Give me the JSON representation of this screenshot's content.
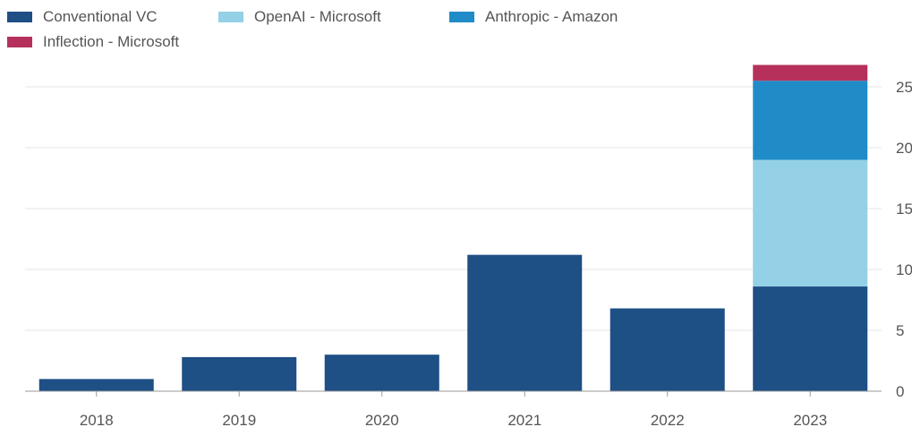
{
  "chart_data": {
    "type": "bar",
    "stacked": true,
    "categories": [
      "2018",
      "2019",
      "2020",
      "2021",
      "2022",
      "2023"
    ],
    "series": [
      {
        "name": "Conventional VC",
        "color": "#1e4f85",
        "values": [
          1.0,
          2.8,
          3.0,
          11.2,
          6.8,
          8.6
        ]
      },
      {
        "name": "OpenAI - Microsoft",
        "color": "#94d1e6",
        "values": [
          0,
          0,
          0,
          0,
          0,
          10.4
        ]
      },
      {
        "name": "Anthropic - Amazon",
        "color": "#1f8cc8",
        "values": [
          0,
          0,
          0,
          0,
          0,
          6.5
        ]
      },
      {
        "name": "Inflection - Microsoft",
        "color": "#b5315c",
        "values": [
          0,
          0,
          0,
          0,
          0,
          1.3
        ]
      }
    ],
    "title": "",
    "xlabel": "",
    "ylabel": "",
    "ylim": [
      0,
      27
    ],
    "yticks": [
      "0",
      "5",
      "10",
      "15",
      "20",
      "25"
    ],
    "ytick_values": [
      0,
      5,
      10,
      15,
      20,
      25
    ],
    "y_axis_side": "right",
    "grid": true,
    "legend_position": "top-left"
  }
}
